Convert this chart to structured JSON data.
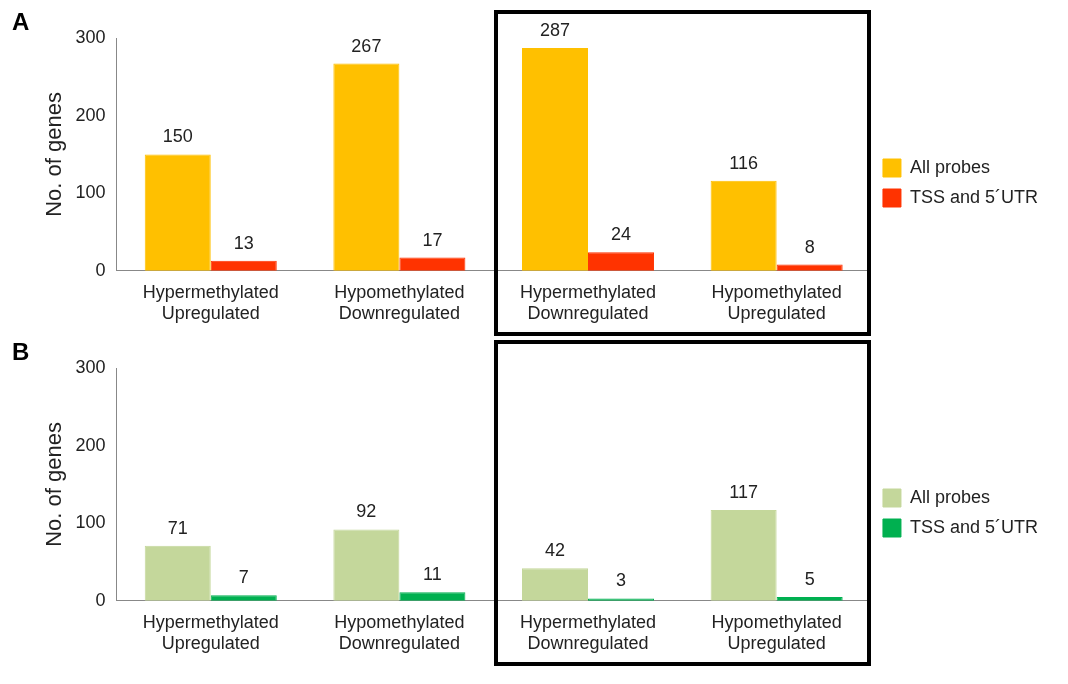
{
  "chart_data": [
    {
      "type": "bar",
      "annotations": [
        "A"
      ],
      "ylabel": "No. of genes",
      "categories": [
        "Hypermethylated Upregulated",
        "Hypomethylated Downregulated",
        "Hypermethylated Downregulated",
        "Hypomethylated Upregulated"
      ],
      "series": [
        {
          "name": "All probes",
          "color": "#ffc000",
          "values": [
            150,
            267,
            287,
            116
          ]
        },
        {
          "name": "TSS and 5´UTR",
          "color": "#ff3300",
          "values": [
            13,
            17,
            24,
            8
          ]
        }
      ],
      "ylim": [
        0,
        300
      ],
      "yticks": [
        0,
        100,
        200,
        300
      ],
      "grid": false,
      "legend": "right",
      "data_labels": true
    },
    {
      "type": "bar",
      "annotations": [
        "B"
      ],
      "ylabel": "No. of genes",
      "categories": [
        "Hypermethylated Upregulated",
        "Hypomethylated Downregulated",
        "Hypermethylated Downregulated",
        "Hypomethylated Upregulated"
      ],
      "series": [
        {
          "name": "All probes",
          "color": "#c4d79b",
          "values": [
            71,
            92,
            42,
            117
          ]
        },
        {
          "name": "TSS and 5´UTR",
          "color": "#00b050",
          "values": [
            7,
            11,
            3,
            5
          ]
        }
      ],
      "ylim": [
        0,
        300
      ],
      "yticks": [
        0,
        100,
        200,
        300
      ],
      "grid": false,
      "legend": "right",
      "data_labels": true
    }
  ]
}
